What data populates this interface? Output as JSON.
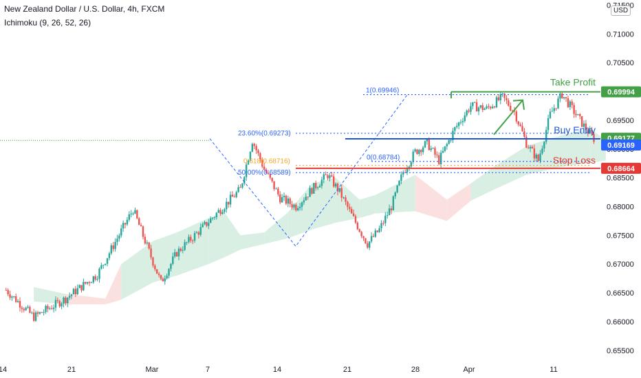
{
  "header": {
    "title": "New Zealand Dollar / U.S. Dollar, 4h, FXCM",
    "indicator": "Ichimoku (9, 26, 52, 26)",
    "currency": "USD"
  },
  "chart_data": {
    "type": "candlestick",
    "y_axis": {
      "ticks": [
        "0.71500",
        "0.71000",
        "0.70500",
        "0.70000",
        "0.69500",
        "0.69000",
        "0.68500",
        "0.68000",
        "0.67500",
        "0.67000",
        "0.66500",
        "0.66000",
        "0.65500"
      ],
      "range": [
        0.6545,
        0.7153
      ]
    },
    "x_axis": {
      "ticks": [
        "14",
        "21",
        "Mar",
        "7",
        "14",
        "21",
        "28",
        "Apr",
        "11"
      ]
    },
    "price_path": [
      {
        "x": 0.5,
        "y": 0.6655
      },
      {
        "x": 4,
        "y": 0.6608
      },
      {
        "x": 8,
        "y": 0.664
      },
      {
        "x": 12,
        "y": 0.6682
      },
      {
        "x": 16.5,
        "y": 0.6795
      },
      {
        "x": 18,
        "y": 0.674
      },
      {
        "x": 20,
        "y": 0.6668
      },
      {
        "x": 22,
        "y": 0.672
      },
      {
        "x": 25,
        "y": 0.676
      },
      {
        "x": 27.5,
        "y": 0.6795
      },
      {
        "x": 30,
        "y": 0.683
      },
      {
        "x": 31.5,
        "y": 0.6915
      },
      {
        "x": 33,
        "y": 0.6865
      },
      {
        "x": 35,
        "y": 0.6815
      },
      {
        "x": 37,
        "y": 0.68
      },
      {
        "x": 39,
        "y": 0.683
      },
      {
        "x": 41,
        "y": 0.6855
      },
      {
        "x": 42.5,
        "y": 0.6825
      },
      {
        "x": 44,
        "y": 0.6785
      },
      {
        "x": 46,
        "y": 0.6735
      },
      {
        "x": 47.5,
        "y": 0.676
      },
      {
        "x": 49,
        "y": 0.68
      },
      {
        "x": 50.5,
        "y": 0.686
      },
      {
        "x": 52,
        "y": 0.6895
      },
      {
        "x": 53.5,
        "y": 0.691
      },
      {
        "x": 55,
        "y": 0.688
      },
      {
        "x": 57,
        "y": 0.6935
      },
      {
        "x": 59,
        "y": 0.6975
      },
      {
        "x": 61,
        "y": 0.697
      },
      {
        "x": 63,
        "y": 0.699
      },
      {
        "x": 64.5,
        "y": 0.6965
      },
      {
        "x": 66,
        "y": 0.691
      },
      {
        "x": 67.5,
        "y": 0.688
      },
      {
        "x": 69,
        "y": 0.696
      },
      {
        "x": 70.5,
        "y": 0.6995
      },
      {
        "x": 72,
        "y": 0.6965
      },
      {
        "x": 73.5,
        "y": 0.6935
      },
      {
        "x": 74.5,
        "y": 0.6918
      }
    ],
    "fibonacci": {
      "levels": [
        {
          "label": "1(0.69946)",
          "value": 0.69946,
          "color": "#2962ff"
        },
        {
          "label": "23.60%(0.69273)",
          "value": 0.69273,
          "color": "#2962ff"
        },
        {
          "label": "0(0.68784)",
          "value": 0.68784,
          "color": "#2962ff"
        },
        {
          "label": "0.618(0.68716)",
          "value": 0.68716,
          "color": "#f5a623"
        },
        {
          "label": "50.00%(0.68589)",
          "value": 0.68589,
          "color": "#2962ff"
        }
      ]
    },
    "trade": {
      "take_profit": {
        "label": "Take Profit",
        "price": "0.69994",
        "value": 0.69994,
        "color": "#43a047"
      },
      "buy_entry": {
        "label": "Buy Entry",
        "price": "0.69177",
        "value": 0.69177,
        "color": "#1e57d6"
      },
      "stop_loss": {
        "label": "Stop Loss",
        "price": "0.68664",
        "value": 0.68664,
        "color": "#e53935"
      }
    },
    "current_price": {
      "price": "0.69169",
      "value": 0.69169,
      "color": "#2962ff"
    },
    "colors": {
      "up": "#26a69a",
      "down": "#ef5350",
      "cloud_bull": "#d9efe3",
      "cloud_bear": "#fbe0e0",
      "axis_text": "#131722",
      "green_marker": "#43a047"
    }
  }
}
